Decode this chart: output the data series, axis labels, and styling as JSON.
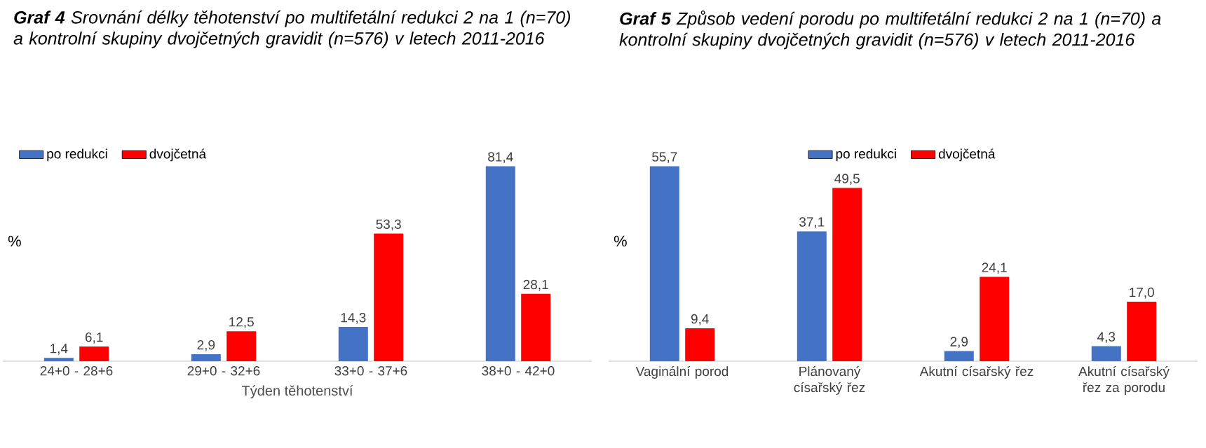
{
  "chart_data": [
    {
      "type": "bar",
      "title": "**Graf 4** Srovnání délky těhotenství po multifetální redukci 2 na 1 (n=70) a kontrolní skupiny dvojčetných gravidit (n=576) v letech 2011-2016",
      "xlabel": "Týden těhotenství",
      "ylabel": "%",
      "legend": "top left",
      "categories": [
        "24+0 - 28+6",
        "29+0 - 32+6",
        "33+0 - 37+6",
        "38+0 - 42+0"
      ],
      "series": [
        {
          "name": "po redukci",
          "color": "#4472c4",
          "values": [
            1.4,
            2.9,
            14.3,
            81.4
          ],
          "value_labels": [
            "1,4",
            "2,9",
            "14,3",
            "81,4"
          ]
        },
        {
          "name": "dvojčetná",
          "color": "#ff0000",
          "values": [
            6.1,
            12.5,
            53.3,
            28.1
          ],
          "value_labels": [
            "6,1",
            "12,5",
            "53,3",
            "28,1"
          ]
        }
      ]
    },
    {
      "type": "bar",
      "title": "**Graf 5** Způsob vedení porodu po multifetální redukci 2 na 1 (n=70) a kontrolní skupiny dvojčetných gravidit (n=576) v letech 2011-2016",
      "ylabel": "%",
      "legend": "top",
      "categories": [
        "Vaginální porod",
        "Plánovaný císařský řez",
        "Akutní císařský řez",
        "Akutní císařský řez za porodu"
      ],
      "series": [
        {
          "name": "po redukci",
          "color": "#4472c4",
          "values": [
            55.7,
            37.1,
            2.9,
            4.3
          ],
          "value_labels": [
            "55,7",
            "37,1",
            "2,9",
            "4,3"
          ]
        },
        {
          "name": "dvojčetná",
          "color": "#ff0000",
          "values": [
            9.4,
            49.5,
            24.1,
            17.0
          ],
          "value_labels": [
            "9,4",
            "49,5",
            "24,1",
            "17,0"
          ]
        }
      ]
    }
  ]
}
